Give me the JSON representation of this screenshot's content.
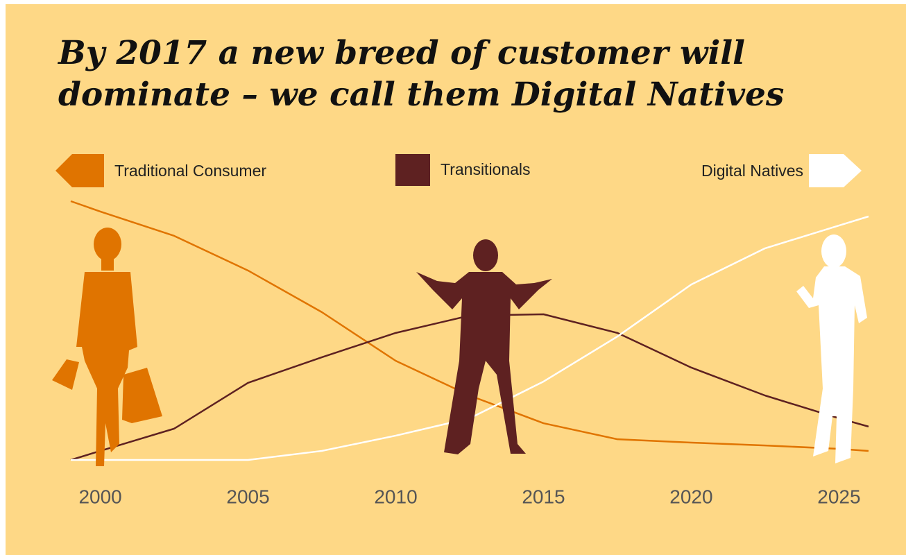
{
  "chart_data": {
    "type": "line",
    "title": [
      "By 2017 a new breed of customer will",
      "dominate – we call them Digital Natives"
    ],
    "x": [
      1999,
      2000,
      2002.5,
      2005,
      2007.5,
      2010,
      2012.5,
      2015,
      2017.5,
      2020,
      2022.5,
      2025,
      2026
    ],
    "series": [
      {
        "name": "Traditional Consumer",
        "color": "#e07400",
        "values": [
          100,
          96,
          86.6,
          73.2,
          57.1,
          38.3,
          24.9,
          14.2,
          8.0,
          6.7,
          5.6,
          4.3,
          3.5
        ]
      },
      {
        "name": "Transitionals",
        "color": "#5e2121",
        "values": [
          0,
          3.5,
          12.1,
          29.8,
          39.7,
          49.1,
          55.8,
          56.3,
          49.1,
          35.7,
          24.9,
          16.1,
          12.9
        ]
      },
      {
        "name": "Digital Natives",
        "color": "#ffffff",
        "values": [
          0,
          0,
          0,
          0,
          3.5,
          9.4,
          16.1,
          30.3,
          47.7,
          67.8,
          81.8,
          90.6,
          94.1
        ]
      }
    ],
    "xlim": [
      1999,
      2026
    ],
    "xticks": [
      2000,
      2005,
      2010,
      2015,
      2020,
      2025
    ],
    "ylim": [
      0,
      100
    ]
  }
}
